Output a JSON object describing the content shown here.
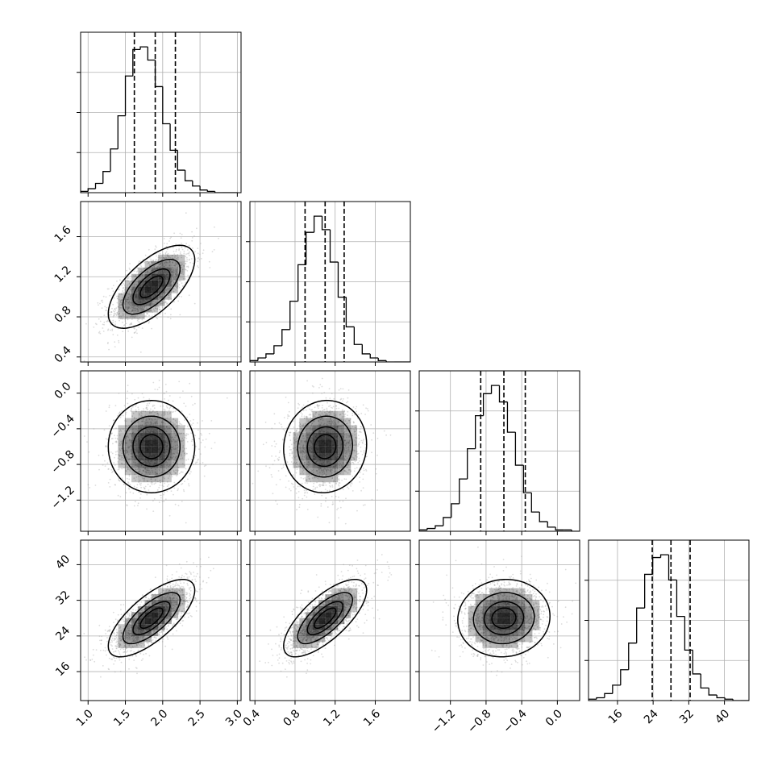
{
  "chart_data": {
    "type": "corner",
    "parameters": [
      {
        "range": [
          0.9,
          3.05
        ],
        "ticks": [
          "1.0",
          "1.5",
          "2.0",
          "2.5",
          "3.0"
        ],
        "tick_values": [
          1.0,
          1.5,
          2.0,
          2.5,
          3.0
        ],
        "median": 1.9,
        "quantiles": [
          1.62,
          2.17
        ],
        "mean": 1.9,
        "sd": 0.28
      },
      {
        "range": [
          0.35,
          1.95
        ],
        "ticks": [
          "0.4",
          "0.8",
          "1.2",
          "1.6"
        ],
        "tick_values": [
          0.4,
          0.8,
          1.2,
          1.6
        ],
        "median": 1.1,
        "quantiles": [
          0.9,
          1.29
        ],
        "mean": 1.1,
        "sd": 0.2
      },
      {
        "range": [
          -1.55,
          0.25
        ],
        "ticks": [
          "−1.2",
          "−0.8",
          "−0.4",
          "0.0"
        ],
        "tick_values": [
          -1.2,
          -0.8,
          -0.4,
          0.0
        ],
        "median": -0.6,
        "quantiles": [
          -0.86,
          -0.36
        ],
        "mean": -0.6,
        "sd": 0.25
      },
      {
        "range": [
          9.5,
          45.5
        ],
        "ticks": [
          "16",
          "24",
          "32",
          "40"
        ],
        "tick_values": [
          16,
          24,
          32,
          40
        ],
        "median": 28.0,
        "quantiles": [
          23.8,
          32.3
        ],
        "mean": 28.0,
        "sd": 4.2
      }
    ],
    "histograms": [
      {
        "param": 0,
        "edges_start": 0.9,
        "bin_width": 0.1,
        "values": [
          1,
          3,
          7,
          16,
          33,
          58,
          88,
          108,
          110,
          100,
          80,
          52,
          32,
          17,
          9,
          5,
          2,
          1,
          0,
          0,
          0
        ]
      },
      {
        "param": 1,
        "edges_start": 0.35,
        "bin_width": 0.08,
        "values": [
          1,
          3,
          6,
          12,
          24,
          45,
          72,
          96,
          108,
          98,
          74,
          48,
          26,
          13,
          6,
          3,
          1,
          0,
          0,
          0
        ]
      },
      {
        "param": 2,
        "edges_start": -1.55,
        "bin_width": 0.09,
        "values": [
          1,
          2,
          4,
          10,
          20,
          38,
          60,
          84,
          100,
          106,
          94,
          72,
          48,
          28,
          14,
          7,
          3,
          1,
          1,
          0
        ]
      },
      {
        "param": 3,
        "edges_start": 9.5,
        "bin_width": 1.8,
        "values": [
          1,
          2,
          5,
          11,
          22,
          41,
          66,
          90,
          102,
          104,
          86,
          60,
          36,
          19,
          9,
          4,
          2,
          1,
          0,
          0
        ]
      }
    ],
    "pairs": [
      {
        "x_param": 0,
        "y_param": 1,
        "correlation": 0.65,
        "center": [
          1.85,
          1.1
        ],
        "sd": [
          0.28,
          0.2
        ]
      },
      {
        "x_param": 0,
        "y_param": 2,
        "correlation": 0.0,
        "center": [
          1.85,
          -0.6
        ],
        "sd": [
          0.28,
          0.25
        ]
      },
      {
        "x_param": 1,
        "y_param": 2,
        "correlation": 0.05,
        "center": [
          1.1,
          -0.6
        ],
        "sd": [
          0.2,
          0.25
        ]
      },
      {
        "x_param": 0,
        "y_param": 3,
        "correlation": 0.72,
        "center": [
          1.85,
          28.0
        ],
        "sd": [
          0.28,
          4.2
        ]
      },
      {
        "x_param": 1,
        "y_param": 3,
        "correlation": 0.72,
        "center": [
          1.1,
          28.0
        ],
        "sd": [
          0.2,
          4.2
        ]
      },
      {
        "x_param": 2,
        "y_param": 3,
        "correlation": 0.05,
        "center": [
          -0.6,
          28.0
        ],
        "sd": [
          0.25,
          4.2
        ]
      }
    ],
    "contour_levels_sigma": [
      0.5,
      1.0,
      1.5,
      2.0
    ],
    "grid": true,
    "colors": {
      "line": "#000000",
      "grid": "#b0b0b0",
      "scatter": "#9a9a9a",
      "density": "#000000"
    }
  }
}
